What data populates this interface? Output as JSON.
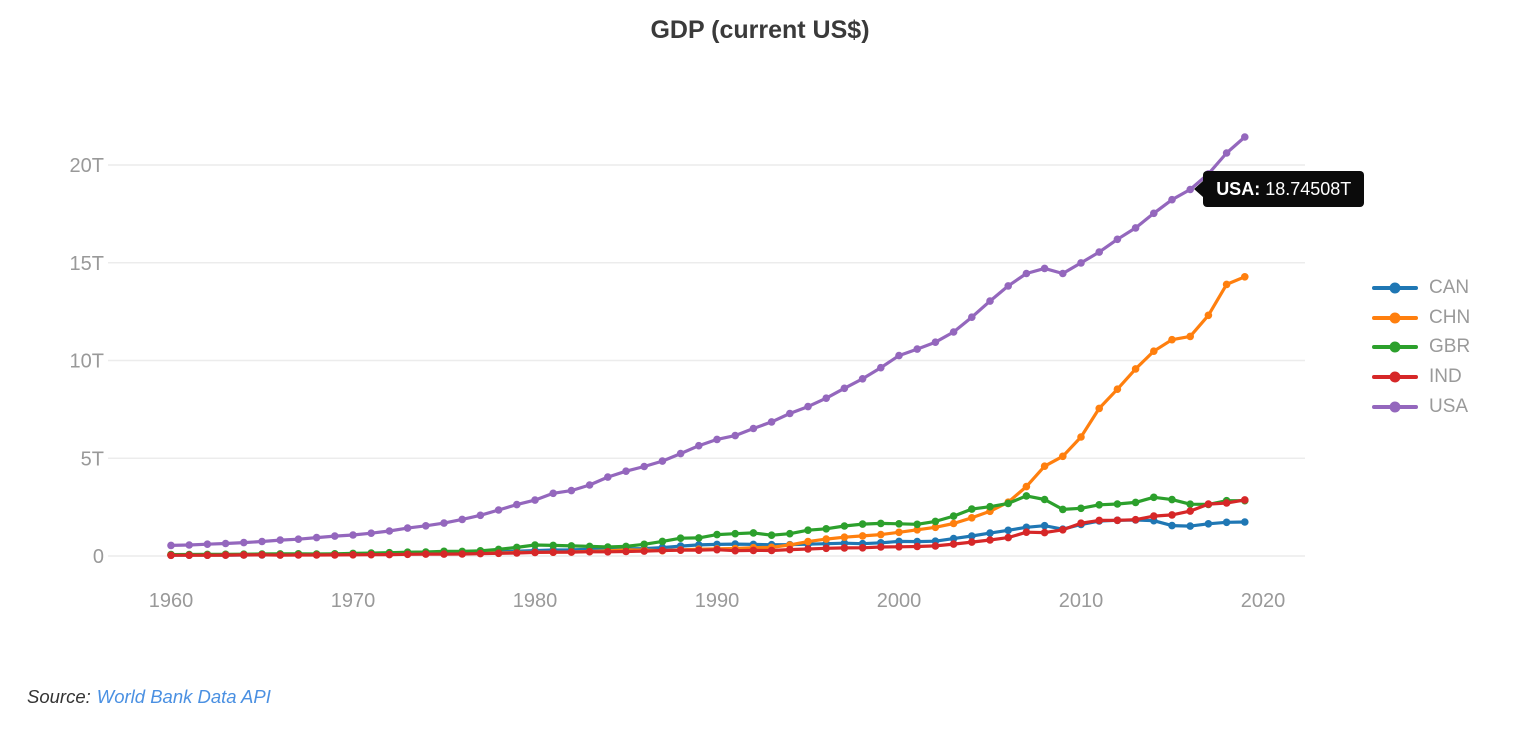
{
  "title": "GDP (current US$)",
  "tooltip": {
    "label": "USA:",
    "value": "18.74508T",
    "year": 2016,
    "bg_color": "#0b0b0b",
    "text_color": "#ffffff"
  },
  "source": {
    "prefix": "Source:",
    "link_text": "World Bank Data API",
    "link_color": "#4a90e2"
  },
  "colors": {
    "grid": "#ececec",
    "axis_text": "#999999",
    "title_text": "#3a3a3a",
    "legend_text": "#9a9a9a"
  },
  "chart_data": {
    "type": "line",
    "title": "GDP (current US$)",
    "xlabel": "",
    "ylabel": "",
    "units": "trillions of current US$",
    "grid": "horizontal",
    "legend_position": "right",
    "ylim": [
      0,
      22.5
    ],
    "xlim": [
      1957,
      2023
    ],
    "yticks": [
      {
        "label": "0",
        "value": 0
      },
      {
        "label": "5T",
        "value": 5
      },
      {
        "label": "10T",
        "value": 10
      },
      {
        "label": "15T",
        "value": 15
      },
      {
        "label": "20T",
        "value": 20
      }
    ],
    "xticks": [
      1960,
      1970,
      1980,
      1990,
      2000,
      2010,
      2020
    ],
    "x": [
      1960,
      1961,
      1962,
      1963,
      1964,
      1965,
      1966,
      1967,
      1968,
      1969,
      1970,
      1971,
      1972,
      1973,
      1974,
      1975,
      1976,
      1977,
      1978,
      1979,
      1980,
      1981,
      1982,
      1983,
      1984,
      1985,
      1986,
      1987,
      1988,
      1989,
      1990,
      1991,
      1992,
      1993,
      1994,
      1995,
      1996,
      1997,
      1998,
      1999,
      2000,
      2001,
      2002,
      2003,
      2004,
      2005,
      2006,
      2007,
      2008,
      2009,
      2010,
      2011,
      2012,
      2013,
      2014,
      2015,
      2016,
      2017,
      2018,
      2019
    ],
    "series": [
      {
        "name": "CAN",
        "color": "#1f77b4",
        "values": [
          0.0406,
          0.0409,
          0.0419,
          0.0445,
          0.0488,
          0.0539,
          0.0601,
          0.0645,
          0.0705,
          0.078,
          0.0876,
          0.0971,
          0.1102,
          0.129,
          0.1603,
          0.174,
          0.2069,
          0.2115,
          0.2189,
          0.2435,
          0.2743,
          0.3064,
          0.3137,
          0.3404,
          0.3553,
          0.3647,
          0.3771,
          0.4315,
          0.5071,
          0.5654,
          0.5934,
          0.6105,
          0.5925,
          0.5771,
          0.5781,
          0.6043,
          0.6281,
          0.6527,
          0.6316,
          0.6766,
          0.7445,
          0.7364,
          0.758,
          0.8922,
          1.0235,
          1.1694,
          1.3154,
          1.4687,
          1.5494,
          1.3711,
          1.613,
          1.7889,
          1.8244,
          1.8427,
          1.8056,
          1.5569,
          1.528,
          1.6494,
          1.7213,
          1.7415
        ]
      },
      {
        "name": "CHN",
        "color": "#ff7f0e",
        "values": [
          0.0597,
          0.05,
          0.0472,
          0.0507,
          0.0597,
          0.0702,
          0.0767,
          0.0723,
          0.07,
          0.0795,
          0.0926,
          0.099,
          0.1132,
          0.1386,
          0.1442,
          0.1634,
          0.1539,
          0.1749,
          0.1495,
          0.1782,
          0.1911,
          0.1959,
          0.205,
          0.2306,
          0.2599,
          0.3095,
          0.3005,
          0.2729,
          0.3122,
          0.3478,
          0.3609,
          0.3834,
          0.4267,
          0.4447,
          0.5643,
          0.7345,
          0.8637,
          0.9616,
          1.0292,
          1.094,
          1.2113,
          1.3394,
          1.4705,
          1.6602,
          1.9553,
          2.286,
          2.7522,
          3.5501,
          4.5943,
          5.1017,
          6.0871,
          7.5516,
          8.5323,
          9.5704,
          10.4756,
          11.0616,
          11.2333,
          12.3105,
          13.8949,
          14.2799
        ]
      },
      {
        "name": "GBR",
        "color": "#2ca02c",
        "values": [
          0.0731,
          0.0775,
          0.081,
          0.0862,
          0.094,
          0.1012,
          0.1077,
          0.1112,
          0.1046,
          0.1123,
          0.1309,
          0.1481,
          0.1697,
          0.1922,
          0.206,
          0.2417,
          0.2328,
          0.2638,
          0.336,
          0.439,
          0.5649,
          0.5408,
          0.5154,
          0.4895,
          0.4619,
          0.4893,
          0.601,
          0.7451,
          0.9105,
          0.9267,
          1.0932,
          1.1425,
          1.1794,
          1.0614,
          1.1404,
          1.3209,
          1.3934,
          1.5362,
          1.6314,
          1.6651,
          1.6481,
          1.6216,
          1.7685,
          2.0385,
          2.3985,
          2.5203,
          2.6923,
          3.074,
          2.8905,
          2.3829,
          2.4411,
          2.6195,
          2.6624,
          2.7398,
          3.0019,
          2.8854,
          2.6508,
          2.6403,
          2.8285,
          2.8291
        ]
      },
      {
        "name": "IND",
        "color": "#d62728",
        "values": [
          0.037,
          0.0392,
          0.0421,
          0.0485,
          0.0565,
          0.0599,
          0.0458,
          0.0503,
          0.0532,
          0.0584,
          0.0622,
          0.0672,
          0.0713,
          0.0852,
          0.0993,
          0.0983,
          0.1024,
          0.121,
          0.1372,
          0.1527,
          0.1863,
          0.1937,
          0.2007,
          0.2188,
          0.2123,
          0.2326,
          0.2486,
          0.2794,
          0.2967,
          0.2962,
          0.3206,
          0.2703,
          0.2883,
          0.2792,
          0.3272,
          0.3602,
          0.3929,
          0.4159,
          0.4212,
          0.4587,
          0.4684,
          0.485,
          0.5149,
          0.6078,
          0.7093,
          0.8204,
          0.9402,
          1.2166,
          1.199,
          1.3418,
          1.6756,
          1.8232,
          1.8276,
          1.8567,
          2.0395,
          2.1036,
          2.2949,
          2.6527,
          2.7132,
          2.8708
        ]
      },
      {
        "name": "USA",
        "color": "#9467bd",
        "values": [
          0.5433,
          0.5633,
          0.6051,
          0.6386,
          0.6857,
          0.7437,
          0.815,
          0.8617,
          0.9425,
          1.0199,
          1.0734,
          1.1648,
          1.279,
          1.4253,
          1.545,
          1.6849,
          1.8732,
          2.0819,
          2.3517,
          2.6274,
          2.8571,
          3.2071,
          3.3441,
          3.6341,
          4.0377,
          4.339,
          4.5797,
          4.8554,
          5.2364,
          5.6417,
          5.9633,
          6.1583,
          6.5203,
          6.8586,
          7.2872,
          7.6398,
          8.0733,
          8.5777,
          9.0627,
          9.6306,
          10.2523,
          10.5818,
          10.9362,
          11.4582,
          12.2135,
          13.0369,
          13.8146,
          14.4518,
          14.7127,
          14.4489,
          14.9921,
          15.5426,
          16.197,
          16.7848,
          17.5272,
          18.2247,
          18.7451,
          19.5427,
          20.6118,
          21.4332
        ]
      }
    ]
  }
}
